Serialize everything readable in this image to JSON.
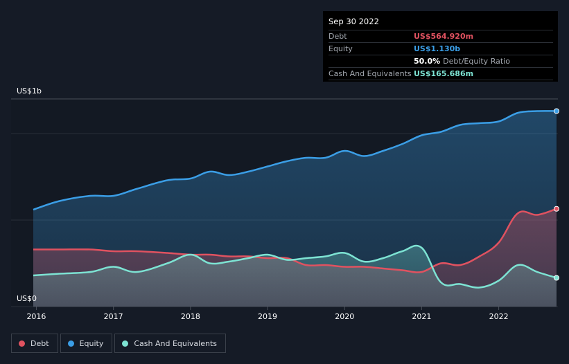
{
  "tooltip": {
    "date": "Sep 30 2022",
    "rows": [
      {
        "label": "Debt",
        "value": "US$564.920m",
        "color": "#e05260",
        "sub": ""
      },
      {
        "label": "Equity",
        "value": "US$1.130b",
        "color": "#3b9ee6",
        "sub": ""
      },
      {
        "label": "",
        "value": "50.0%",
        "color": "#ffffff",
        "sub": "Debt/Equity Ratio"
      },
      {
        "label": "Cash And Equivalents",
        "value": "US$165.686m",
        "color": "#7de3d3",
        "sub": ""
      }
    ]
  },
  "legend": [
    {
      "label": "Debt",
      "color": "#e05260"
    },
    {
      "label": "Equity",
      "color": "#3b9ee6"
    },
    {
      "label": "Cash And Equivalents",
      "color": "#7de3d3"
    }
  ],
  "chart_data": {
    "type": "area",
    "y_top_label": "US$1b",
    "y_bottom_label": "US$0",
    "ylim": [
      0,
      1.2
    ],
    "xlim": [
      2015.96,
      2022.75
    ],
    "x_ticks": [
      2016,
      2017,
      2018,
      2019,
      2020,
      2021,
      2022
    ],
    "x_tick_labels": [
      "2016",
      "2017",
      "2018",
      "2019",
      "2020",
      "2021",
      "2022"
    ],
    "grid": true,
    "series": [
      {
        "name": "Equity",
        "color": "#3b9ee6",
        "x": [
          2015.96,
          2016.3,
          2016.7,
          2017.0,
          2017.3,
          2017.7,
          2018.0,
          2018.25,
          2018.5,
          2018.75,
          2019.0,
          2019.25,
          2019.5,
          2019.75,
          2020.0,
          2020.25,
          2020.5,
          2020.75,
          2021.0,
          2021.25,
          2021.5,
          2021.75,
          2022.0,
          2022.25,
          2022.5,
          2022.75
        ],
        "values": [
          0.56,
          0.61,
          0.64,
          0.64,
          0.68,
          0.73,
          0.74,
          0.78,
          0.76,
          0.78,
          0.81,
          0.84,
          0.86,
          0.86,
          0.9,
          0.87,
          0.9,
          0.94,
          0.99,
          1.01,
          1.05,
          1.06,
          1.07,
          1.12,
          1.13,
          1.13
        ]
      },
      {
        "name": "Debt",
        "color": "#e05260",
        "x": [
          2015.96,
          2016.3,
          2016.7,
          2017.0,
          2017.3,
          2017.7,
          2018.0,
          2018.25,
          2018.5,
          2018.75,
          2019.0,
          2019.25,
          2019.5,
          2019.75,
          2020.0,
          2020.25,
          2020.5,
          2020.75,
          2021.0,
          2021.25,
          2021.5,
          2021.75,
          2022.0,
          2022.25,
          2022.5,
          2022.75
        ],
        "values": [
          0.33,
          0.33,
          0.33,
          0.32,
          0.32,
          0.31,
          0.3,
          0.3,
          0.29,
          0.29,
          0.28,
          0.28,
          0.24,
          0.24,
          0.23,
          0.23,
          0.22,
          0.21,
          0.2,
          0.25,
          0.24,
          0.29,
          0.37,
          0.54,
          0.53,
          0.565
        ]
      },
      {
        "name": "Cash And Equivalents",
        "color": "#7de3d3",
        "x": [
          2015.96,
          2016.3,
          2016.7,
          2017.0,
          2017.3,
          2017.7,
          2018.0,
          2018.25,
          2018.5,
          2018.75,
          2019.0,
          2019.25,
          2019.5,
          2019.75,
          2020.0,
          2020.25,
          2020.5,
          2020.75,
          2021.0,
          2021.25,
          2021.5,
          2021.75,
          2022.0,
          2022.25,
          2022.5,
          2022.75
        ],
        "values": [
          0.18,
          0.19,
          0.2,
          0.23,
          0.2,
          0.25,
          0.3,
          0.25,
          0.26,
          0.28,
          0.3,
          0.27,
          0.28,
          0.29,
          0.31,
          0.26,
          0.28,
          0.32,
          0.34,
          0.14,
          0.13,
          0.11,
          0.15,
          0.24,
          0.2,
          0.166
        ]
      }
    ]
  }
}
